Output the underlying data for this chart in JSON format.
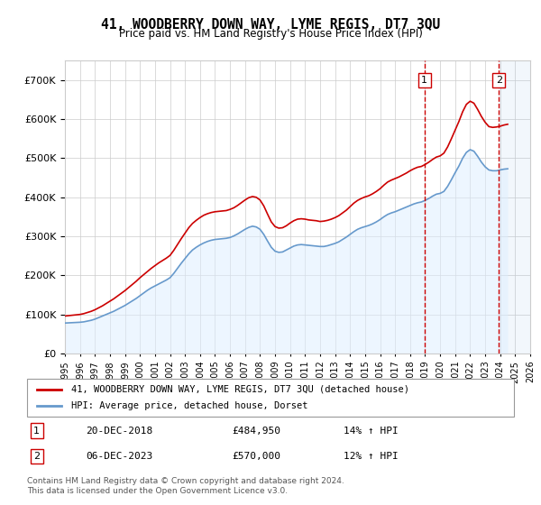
{
  "title": "41, WOODBERRY DOWN WAY, LYME REGIS, DT7 3QU",
  "subtitle": "Price paid vs. HM Land Registry's House Price Index (HPI)",
  "legend_line1": "41, WOODBERRY DOWN WAY, LYME REGIS, DT7 3QU (detached house)",
  "legend_line2": "HPI: Average price, detached house, Dorset",
  "transaction1_label": "1",
  "transaction1_date": "20-DEC-2018",
  "transaction1_price": "£484,950",
  "transaction1_hpi": "14% ↑ HPI",
  "transaction2_label": "2",
  "transaction2_date": "06-DEC-2023",
  "transaction2_price": "£570,000",
  "transaction2_hpi": "12% ↑ HPI",
  "footnote": "Contains HM Land Registry data © Crown copyright and database right 2024.\nThis data is licensed under the Open Government Licence v3.0.",
  "price_color": "#cc0000",
  "hpi_color": "#6699cc",
  "hpi_fill_color": "#ddeeff",
  "background_color": "#ffffff",
  "grid_color": "#cccccc",
  "transaction1_x": 2018.96,
  "transaction2_x": 2023.92,
  "transaction1_y": 484950,
  "transaction2_y": 570000,
  "ylim": [
    0,
    750000
  ],
  "xlim_start": 1995,
  "xlim_end": 2026,
  "yticks": [
    0,
    100000,
    200000,
    300000,
    400000,
    500000,
    600000,
    700000
  ],
  "xticks": [
    1995,
    1996,
    1997,
    1998,
    1999,
    2000,
    2001,
    2002,
    2003,
    2004,
    2005,
    2006,
    2007,
    2008,
    2009,
    2010,
    2011,
    2012,
    2013,
    2014,
    2015,
    2016,
    2017,
    2018,
    2019,
    2020,
    2021,
    2022,
    2023,
    2024,
    2025,
    2026
  ],
  "hpi_years": [
    1995.0,
    1995.25,
    1995.5,
    1995.75,
    1996.0,
    1996.25,
    1996.5,
    1996.75,
    1997.0,
    1997.25,
    1997.5,
    1997.75,
    1998.0,
    1998.25,
    1998.5,
    1998.75,
    1999.0,
    1999.25,
    1999.5,
    1999.75,
    2000.0,
    2000.25,
    2000.5,
    2000.75,
    2001.0,
    2001.25,
    2001.5,
    2001.75,
    2002.0,
    2002.25,
    2002.5,
    2002.75,
    2003.0,
    2003.25,
    2003.5,
    2003.75,
    2004.0,
    2004.25,
    2004.5,
    2004.75,
    2005.0,
    2005.25,
    2005.5,
    2005.75,
    2006.0,
    2006.25,
    2006.5,
    2006.75,
    2007.0,
    2007.25,
    2007.5,
    2007.75,
    2008.0,
    2008.25,
    2008.5,
    2008.75,
    2009.0,
    2009.25,
    2009.5,
    2009.75,
    2010.0,
    2010.25,
    2010.5,
    2010.75,
    2011.0,
    2011.25,
    2011.5,
    2011.75,
    2012.0,
    2012.25,
    2012.5,
    2012.75,
    2013.0,
    2013.25,
    2013.5,
    2013.75,
    2014.0,
    2014.25,
    2014.5,
    2014.75,
    2015.0,
    2015.25,
    2015.5,
    2015.75,
    2016.0,
    2016.25,
    2016.5,
    2016.75,
    2017.0,
    2017.25,
    2017.5,
    2017.75,
    2018.0,
    2018.25,
    2018.5,
    2018.75,
    2019.0,
    2019.25,
    2019.5,
    2019.75,
    2020.0,
    2020.25,
    2020.5,
    2020.75,
    2021.0,
    2021.25,
    2021.5,
    2021.75,
    2022.0,
    2022.25,
    2022.5,
    2022.75,
    2023.0,
    2023.25,
    2023.5,
    2023.75,
    2024.0,
    2024.25,
    2024.5
  ],
  "hpi_values": [
    78000,
    78500,
    79000,
    79500,
    80000,
    81000,
    83000,
    85000,
    88000,
    92000,
    96000,
    100000,
    104000,
    108000,
    113000,
    118000,
    123000,
    129000,
    135000,
    141000,
    148000,
    155000,
    162000,
    168000,
    173000,
    178000,
    183000,
    188000,
    194000,
    205000,
    218000,
    231000,
    243000,
    255000,
    265000,
    272000,
    278000,
    283000,
    287000,
    290000,
    292000,
    293000,
    294000,
    295000,
    297000,
    301000,
    306000,
    312000,
    318000,
    323000,
    326000,
    324000,
    318000,
    305000,
    288000,
    272000,
    262000,
    259000,
    260000,
    265000,
    270000,
    275000,
    278000,
    279000,
    278000,
    277000,
    276000,
    275000,
    274000,
    274000,
    276000,
    279000,
    282000,
    286000,
    292000,
    298000,
    305000,
    312000,
    318000,
    322000,
    325000,
    328000,
    332000,
    337000,
    343000,
    350000,
    356000,
    360000,
    363000,
    367000,
    371000,
    375000,
    379000,
    383000,
    386000,
    388000,
    392000,
    397000,
    403000,
    408000,
    410000,
    415000,
    428000,
    445000,
    463000,
    480000,
    500000,
    515000,
    522000,
    518000,
    505000,
    490000,
    478000,
    470000,
    468000,
    468000,
    470000,
    472000,
    473000
  ],
  "price_years": [
    1995.0,
    1995.25,
    1995.5,
    1995.75,
    1996.0,
    1996.25,
    1996.5,
    1996.75,
    1997.0,
    1997.25,
    1997.5,
    1997.75,
    1998.0,
    1998.25,
    1998.5,
    1998.75,
    1999.0,
    1999.25,
    1999.5,
    1999.75,
    2000.0,
    2000.25,
    2000.5,
    2000.75,
    2001.0,
    2001.25,
    2001.5,
    2001.75,
    2002.0,
    2002.25,
    2002.5,
    2002.75,
    2003.0,
    2003.25,
    2003.5,
    2003.75,
    2004.0,
    2004.25,
    2004.5,
    2004.75,
    2005.0,
    2005.25,
    2005.5,
    2005.75,
    2006.0,
    2006.25,
    2006.5,
    2006.75,
    2007.0,
    2007.25,
    2007.5,
    2007.75,
    2008.0,
    2008.25,
    2008.5,
    2008.75,
    2009.0,
    2009.25,
    2009.5,
    2009.75,
    2010.0,
    2010.25,
    2010.5,
    2010.75,
    2011.0,
    2011.25,
    2011.5,
    2011.75,
    2012.0,
    2012.25,
    2012.5,
    2012.75,
    2013.0,
    2013.25,
    2013.5,
    2013.75,
    2014.0,
    2014.25,
    2014.5,
    2014.75,
    2015.0,
    2015.25,
    2015.5,
    2015.75,
    2016.0,
    2016.25,
    2016.5,
    2016.75,
    2017.0,
    2017.25,
    2017.5,
    2017.75,
    2018.0,
    2018.25,
    2018.5,
    2018.75,
    2019.0,
    2019.25,
    2019.5,
    2019.75,
    2020.0,
    2020.25,
    2020.5,
    2020.75,
    2021.0,
    2021.25,
    2021.5,
    2021.75,
    2022.0,
    2022.25,
    2022.5,
    2022.75,
    2023.0,
    2023.25,
    2023.5,
    2023.75,
    2024.0,
    2024.25,
    2024.5
  ],
  "price_values": [
    96000,
    97000,
    98000,
    99000,
    100000,
    102000,
    105000,
    108000,
    112000,
    117000,
    122000,
    128000,
    134000,
    140000,
    147000,
    154000,
    161000,
    169000,
    177000,
    185000,
    194000,
    202000,
    210000,
    218000,
    225000,
    232000,
    238000,
    244000,
    251000,
    264000,
    279000,
    294000,
    308000,
    322000,
    333000,
    341000,
    348000,
    354000,
    358000,
    361000,
    363000,
    364000,
    365000,
    366000,
    369000,
    373000,
    379000,
    386000,
    393000,
    399000,
    402000,
    400000,
    393000,
    378000,
    357000,
    337000,
    325000,
    321000,
    322000,
    327000,
    334000,
    340000,
    344000,
    345000,
    344000,
    342000,
    341000,
    340000,
    338000,
    339000,
    341000,
    344000,
    348000,
    353000,
    360000,
    367000,
    376000,
    385000,
    392000,
    397000,
    401000,
    404000,
    409000,
    415000,
    422000,
    431000,
    439000,
    444000,
    448000,
    452000,
    457000,
    462000,
    468000,
    473000,
    477000,
    479000,
    484000,
    490000,
    497000,
    503000,
    506000,
    513000,
    529000,
    550000,
    572000,
    594000,
    619000,
    638000,
    646000,
    641000,
    625000,
    607000,
    592000,
    581000,
    579000,
    580000,
    582000,
    585000,
    587000
  ]
}
